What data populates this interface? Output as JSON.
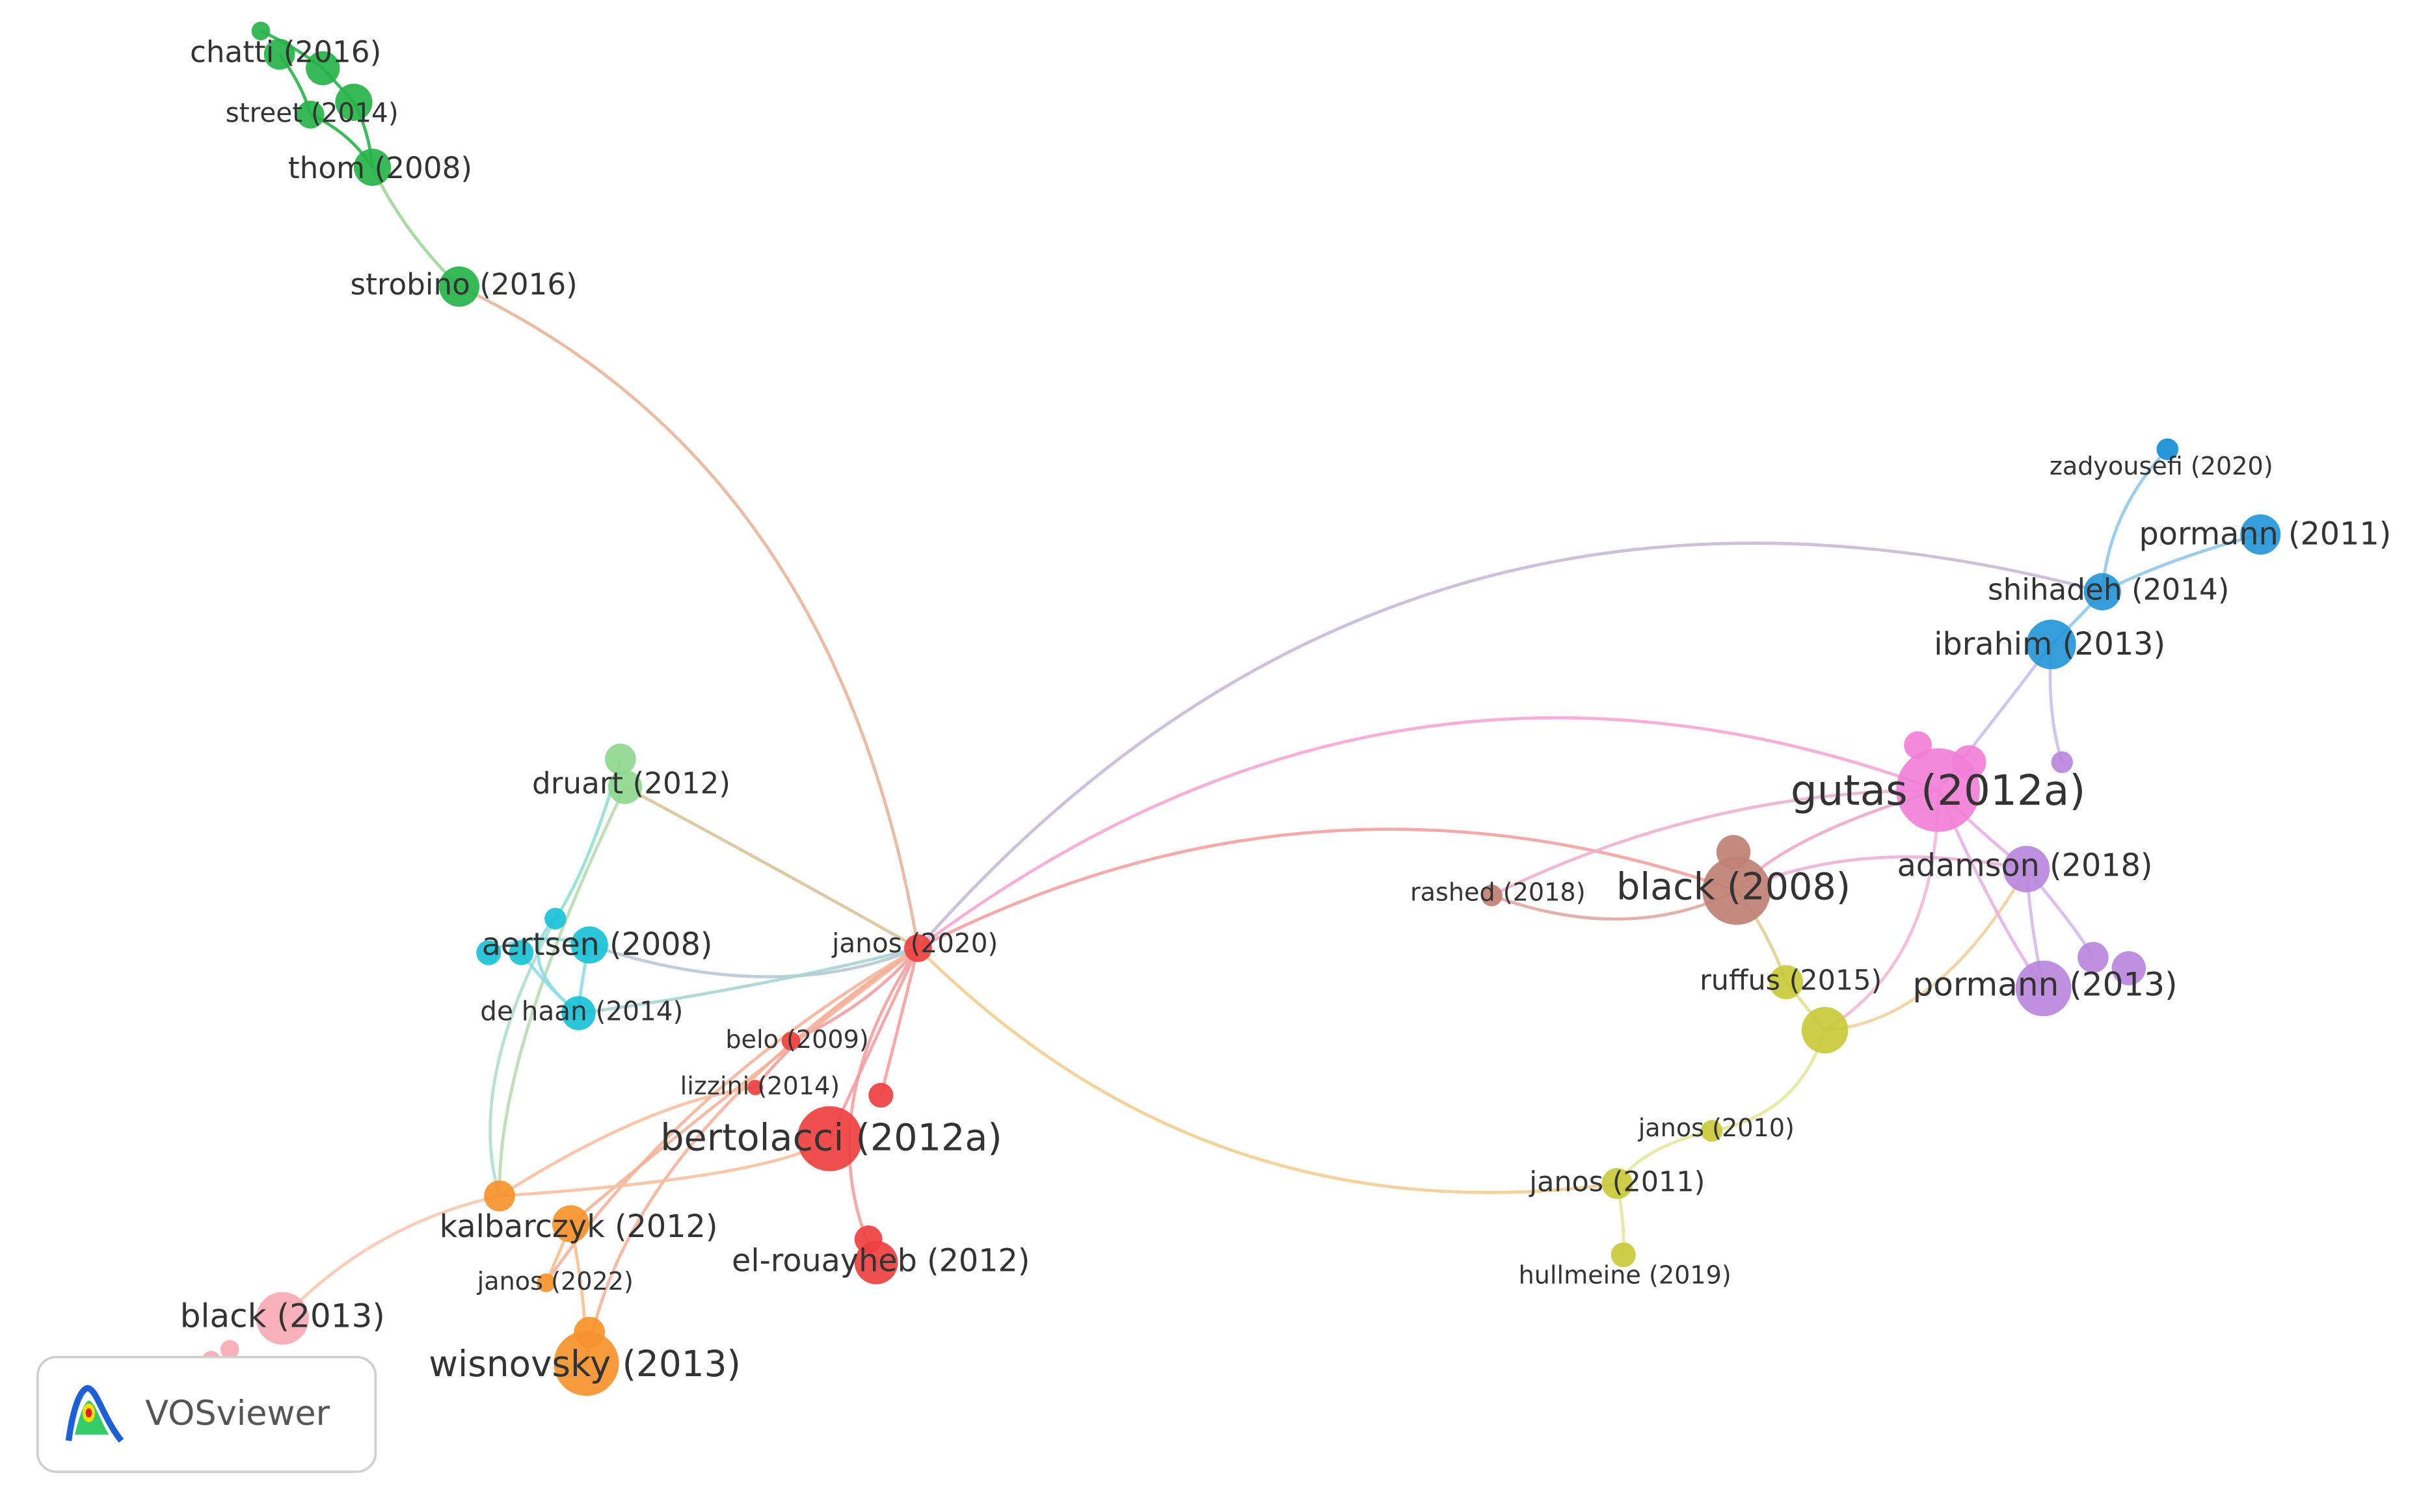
{
  "nodes": [
    {
      "label": "chatti (2016)"
    },
    {
      "label": "street (2014)"
    },
    {
      "label": "thom (2008)"
    },
    {
      "label": "strobino (2016)"
    },
    {
      "label": "druart (2012)"
    },
    {
      "label": "aertsen (2008)"
    },
    {
      "label": "de haan (2014)"
    },
    {
      "label": "janos (2020)"
    },
    {
      "label": "belo (2009)"
    },
    {
      "label": "lizzini (2014)"
    },
    {
      "label": "bertolacci (2012a)"
    },
    {
      "label": "el-rouayheb (2012)"
    },
    {
      "label": "kalbarczyk (2012)"
    },
    {
      "label": "janos (2022)"
    },
    {
      "label": "black (2013)"
    },
    {
      "label": "wisnovsky (2013)"
    },
    {
      "label": "rashed (2018)"
    },
    {
      "label": "black (2008)"
    },
    {
      "label": "ruffus (2015)"
    },
    {
      "label": "janos (2010)"
    },
    {
      "label": "janos (2011)"
    },
    {
      "label": "hullmeine (2019)"
    },
    {
      "label": "gutas (2012a)"
    },
    {
      "label": "adamson (2018)"
    },
    {
      "label": "pormann (2013)"
    },
    {
      "label": "zadyousefi (2020)"
    },
    {
      "label": "pormann (2011)"
    },
    {
      "label": "shihadeh (2014)"
    },
    {
      "label": "ibrahim (2013)"
    }
  ],
  "logo": {
    "text": "VOSviewer"
  }
}
